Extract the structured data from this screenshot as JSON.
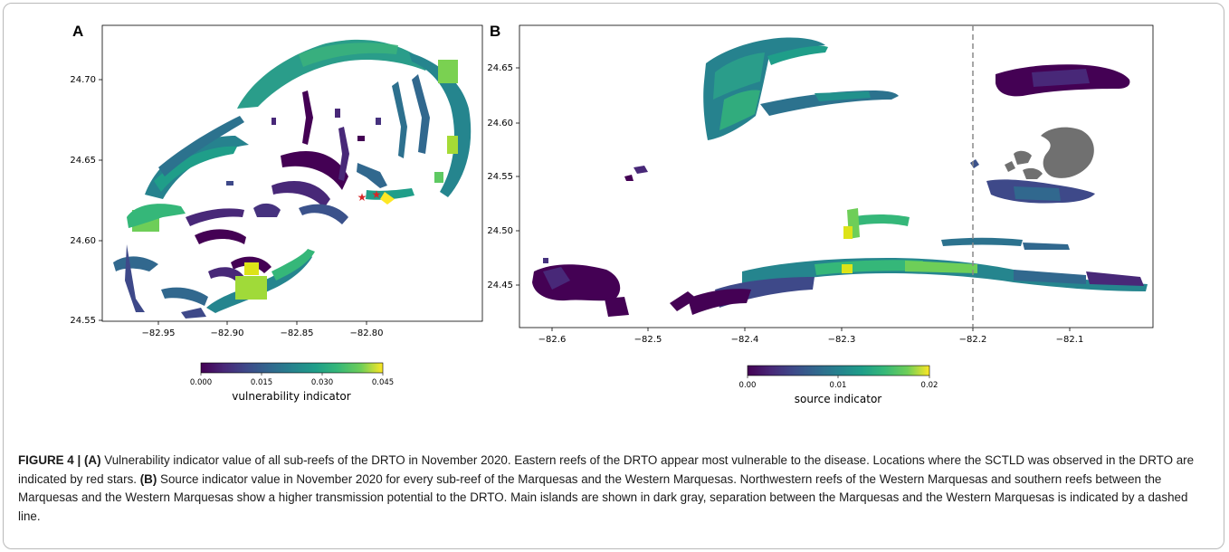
{
  "panels": [
    {
      "letter": "A",
      "y_ticks": [
        "24.70",
        "24.65",
        "24.60",
        "24.55"
      ],
      "x_ticks": [
        "−82.95",
        "−82.90",
        "−82.85",
        "−82.80"
      ],
      "colorbar": {
        "label": "vulnerability indicator",
        "ticks": [
          "0.000",
          "0.015",
          "0.030",
          "0.045"
        ],
        "colormap": "viridis"
      }
    },
    {
      "letter": "B",
      "y_ticks": [
        "24.65",
        "24.60",
        "24.55",
        "24.50",
        "24.45"
      ],
      "x_ticks": [
        "−82.6",
        "−82.5",
        "−82.4",
        "−82.3",
        "−82.2",
        "−82.1"
      ],
      "colorbar": {
        "label": "source indicator",
        "ticks": [
          "0.00",
          "0.01",
          "0.02"
        ],
        "colormap": "viridis"
      }
    }
  ],
  "colors": {
    "viridis_dark": "#440154",
    "viridis_mid": "#21918c",
    "viridis_light": "#fde725",
    "island_gray": "#707070",
    "star_red": "#d62728",
    "dashed_line": "#888888"
  },
  "caption": {
    "label": "FIGURE 4 | ",
    "a_marker": "(A)",
    "a_text": " Vulnerability indicator value of all sub-reefs of the DRTO in November 2020. Eastern reefs of the DRTO appear most vulnerable to the disease. Locations where the SCTLD was observed in the DRTO are indicated by red stars. ",
    "b_marker": "(B)",
    "b_text": " Source indicator value in November 2020 for every sub-reef of the Marquesas and the Western Marquesas. Northwestern reefs of the Western Marquesas and southern reefs between the Marquesas and the Western Marquesas show a higher transmission potential to the DRTO. Main islands are shown in dark gray, separation between the Marquesas and the Western Marquesas is indicated by a dashed line."
  }
}
